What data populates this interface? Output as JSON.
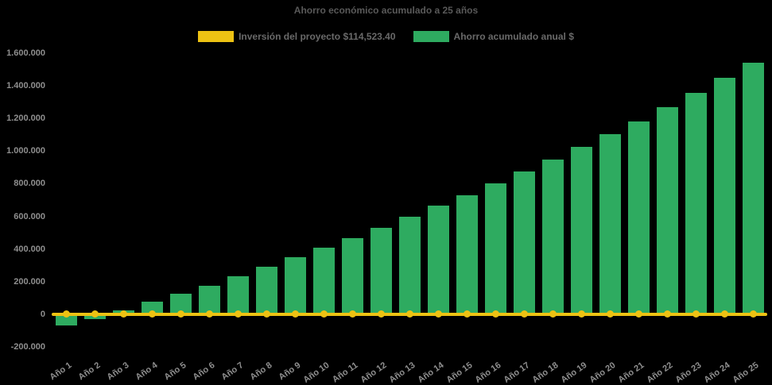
{
  "chart": {
    "title": "Ahorro económico acumulado a 25 años",
    "background": "#000000",
    "title_color": "#595959",
    "legend_text_color": "#696969",
    "axis_label_color": "#8f8f8f",
    "legend": [
      {
        "label": "Inversión del proyecto $114,523.40",
        "color": "#edc213",
        "type": "line"
      },
      {
        "label": "Ahorro acumulado anual $",
        "color": "#2eab60",
        "type": "bar"
      }
    ]
  },
  "chart_data": {
    "type": "bar",
    "title": "Ahorro económico acumulado a 25 años",
    "categories": [
      "Año 1",
      "Año 2",
      "Año 3",
      "Año 4",
      "Año 5",
      "Año 6",
      "Año 7",
      "Año 8",
      "Año 9",
      "Año 10",
      "Año 11",
      "Año 12",
      "Año 13",
      "Año 14",
      "Año 15",
      "Año 16",
      "Año 17",
      "Año 18",
      "Año 19",
      "Año 20",
      "Año 21",
      "Año 22",
      "Año 23",
      "Año 24",
      "Año 25"
    ],
    "series": [
      {
        "name": "Inversión del proyecto $114,523.40",
        "type": "line",
        "color": "#edc213",
        "values": [
          0,
          0,
          0,
          0,
          0,
          0,
          0,
          0,
          0,
          0,
          0,
          0,
          0,
          0,
          0,
          0,
          0,
          0,
          0,
          0,
          0,
          0,
          0,
          0,
          0
        ]
      },
      {
        "name": "Ahorro acumulado anual $",
        "type": "bar",
        "color": "#2eab60",
        "values": [
          -70000,
          -32000,
          25000,
          77000,
          125000,
          177000,
          233000,
          292000,
          348000,
          406000,
          467000,
          531000,
          596000,
          664000,
          727000,
          801000,
          875000,
          946000,
          1027000,
          1104000,
          1183000,
          1270000,
          1356000,
          1448000,
          1540000
        ]
      }
    ],
    "ylim": [
      -200000,
      1600000
    ],
    "ytick_step": 200000,
    "yticklabels": [
      "1.600.000",
      "1.400.000",
      "1.200.000",
      "1.000.000",
      "800.000",
      "600.000",
      "400.000",
      "200.000",
      "0",
      "-200.000"
    ],
    "xlabel": "",
    "ylabel": "",
    "grid": false,
    "legend_position": "top-center"
  }
}
